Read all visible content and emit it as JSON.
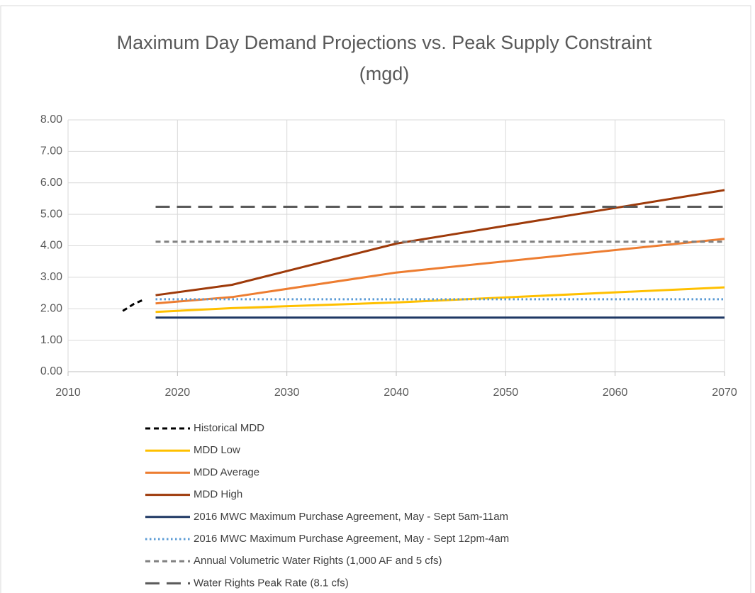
{
  "chart_data": {
    "type": "line",
    "title": "Maximum Day Demand Projections vs. Peak Supply Constraint (mgd)",
    "xlim": [
      2010,
      2070
    ],
    "xticks": [
      2010,
      2020,
      2030,
      2040,
      2050,
      2060,
      2070
    ],
    "ylim": [
      0,
      8
    ],
    "yticks": [
      {
        "value": 0,
        "label": "0.00"
      },
      {
        "value": 1,
        "label": "1.00"
      },
      {
        "value": 2,
        "label": "2.00"
      },
      {
        "value": 3,
        "label": "3.00"
      },
      {
        "value": 4,
        "label": "4.00"
      },
      {
        "value": 5,
        "label": "5.00"
      },
      {
        "value": 6,
        "label": "6.00"
      },
      {
        "value": 7,
        "label": "7.00"
      },
      {
        "value": 8,
        "label": "8.00"
      }
    ],
    "grid": true,
    "legend": "bottom",
    "series": [
      {
        "name": "Historical MDD",
        "color": "#000000",
        "dash": "dashed",
        "x": [
          2015,
          2016,
          2017
        ],
        "values": [
          1.93,
          2.15,
          2.3
        ]
      },
      {
        "name": "MDD Low",
        "color": "#ffc000",
        "dash": "solid",
        "x": [
          2018,
          2025,
          2040,
          2070
        ],
        "values": [
          1.9,
          2.02,
          2.2,
          2.68
        ]
      },
      {
        "name": "MDD Average",
        "color": "#ed7d31",
        "dash": "solid",
        "x": [
          2018,
          2025,
          2040,
          2070
        ],
        "values": [
          2.17,
          2.37,
          3.15,
          4.22
        ]
      },
      {
        "name": "MDD High",
        "color": "#9e3a0a",
        "dash": "solid",
        "x": [
          2018,
          2025,
          2040,
          2070
        ],
        "values": [
          2.43,
          2.76,
          4.07,
          5.77
        ]
      },
      {
        "name": "2016 MWC Maximum Purchase Agreement, May - Sept 5am-11am",
        "color": "#1f3864",
        "dash": "solid",
        "x": [
          2018,
          2070
        ],
        "values": [
          1.72,
          1.72
        ]
      },
      {
        "name": "2016 MWC Maximum Purchase Agreement, May - Sept 12pm-4am",
        "color": "#5b9bd5",
        "dash": "dotted",
        "x": [
          2018,
          2070
        ],
        "values": [
          2.3,
          2.3
        ]
      },
      {
        "name": "Annual Volumetric Water Rights (1,000 AF and 5 cfs)",
        "color": "#808080",
        "dash": "dashed",
        "x": [
          2018,
          2070
        ],
        "values": [
          4.13,
          4.13
        ]
      },
      {
        "name": "Water Rights Peak Rate (8.1 cfs)",
        "color": "#595959",
        "dash": "long-dash",
        "x": [
          2018,
          2070
        ],
        "values": [
          5.24,
          5.24
        ]
      }
    ]
  }
}
